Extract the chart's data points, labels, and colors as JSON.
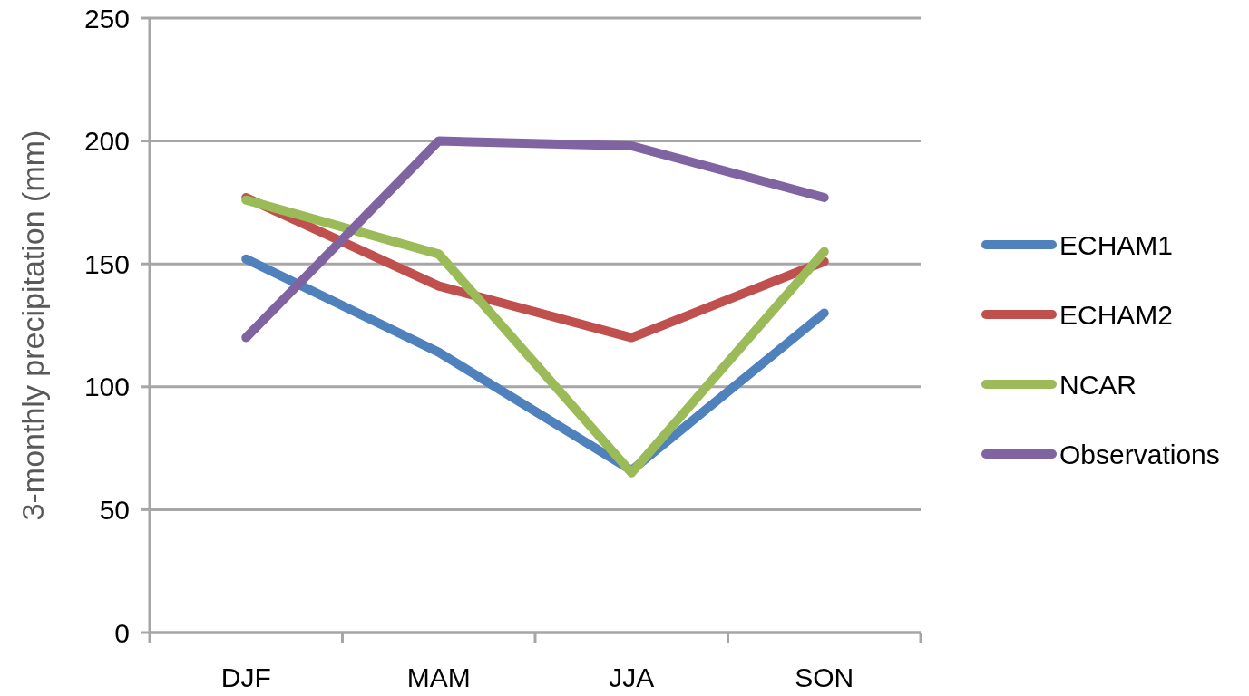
{
  "chart_data": {
    "type": "line",
    "ylabel": "3-monthly precipitation (mm)",
    "categories": [
      "DJF",
      "MAM",
      "JJA",
      "SON"
    ],
    "series": [
      {
        "name": "ECHAM1",
        "color": "#4f81bd",
        "values": [
          152,
          114,
          66,
          130
        ]
      },
      {
        "name": "ECHAM2",
        "color": "#c0504d",
        "values": [
          177,
          141,
          120,
          151
        ]
      },
      {
        "name": "NCAR",
        "color": "#9bbb59",
        "values": [
          176,
          154,
          65,
          155
        ]
      },
      {
        "name": "Observations",
        "color": "#8064a2",
        "values": [
          120,
          200,
          198,
          177
        ]
      }
    ],
    "ylim": [
      0,
      250
    ],
    "yticks": [
      0,
      50,
      100,
      150,
      200,
      250
    ],
    "grid": "y",
    "legend": "right",
    "marker": "none",
    "line_style": "solid"
  }
}
